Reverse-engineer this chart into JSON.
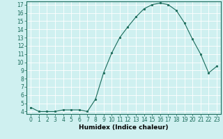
{
  "x": [
    0,
    1,
    2,
    3,
    4,
    5,
    6,
    7,
    8,
    9,
    10,
    11,
    12,
    13,
    14,
    15,
    16,
    17,
    18,
    19,
    20,
    21,
    22,
    23
  ],
  "y": [
    4.5,
    4.0,
    4.0,
    4.0,
    4.2,
    4.2,
    4.2,
    4.0,
    5.5,
    8.7,
    11.1,
    13.0,
    14.3,
    15.5,
    16.5,
    17.0,
    17.2,
    17.0,
    16.3,
    14.8,
    12.8,
    11.0,
    8.7,
    9.5
  ],
  "xlabel": "Humidex (Indice chaleur)",
  "xlim_min": -0.5,
  "xlim_max": 23.5,
  "ylim_min": 3.7,
  "ylim_max": 17.4,
  "yticks": [
    4,
    5,
    6,
    7,
    8,
    9,
    10,
    11,
    12,
    13,
    14,
    15,
    16,
    17
  ],
  "xticks": [
    0,
    1,
    2,
    3,
    4,
    5,
    6,
    7,
    8,
    9,
    10,
    11,
    12,
    13,
    14,
    15,
    16,
    17,
    18,
    19,
    20,
    21,
    22,
    23
  ],
  "line_color": "#1a6b5a",
  "marker_color": "#1a6b5a",
  "bg_color": "#cff0f0",
  "grid_color": "#ffffff",
  "tick_fontsize": 5.5,
  "label_fontsize": 6.5
}
